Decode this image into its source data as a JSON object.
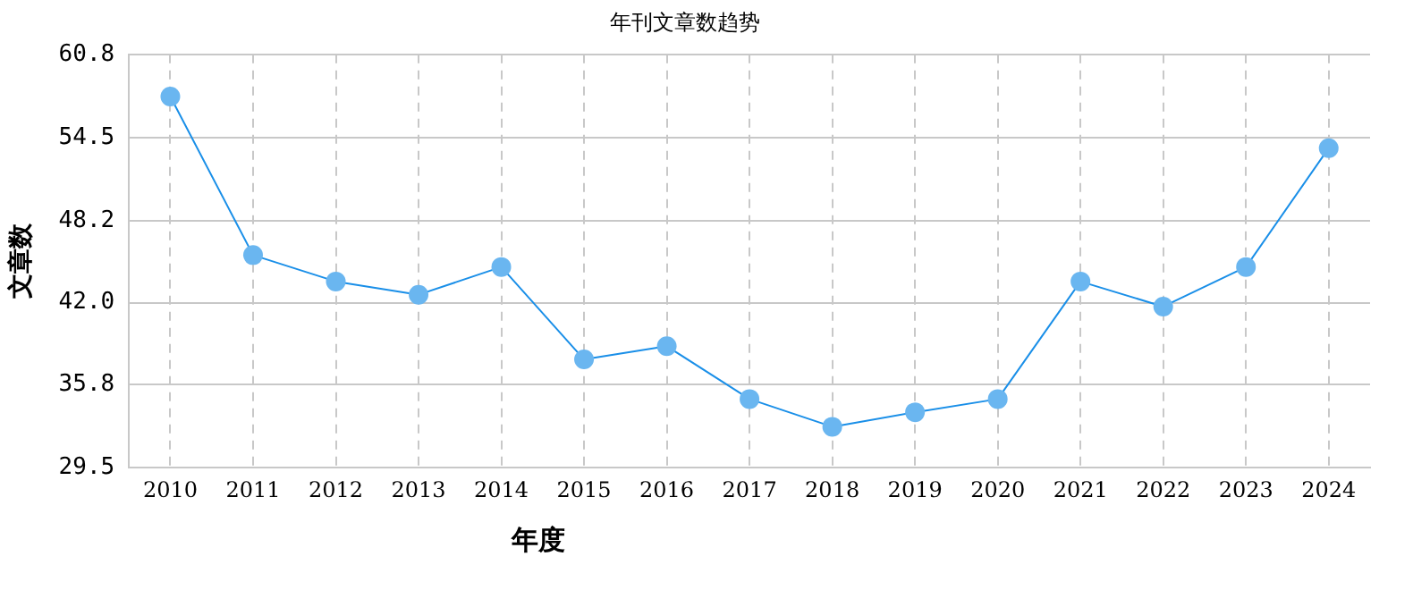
{
  "chart_data": {
    "type": "line",
    "title": "年刊文章数趋势",
    "xlabel": "年度",
    "ylabel": "文章数",
    "categories": [
      "2010",
      "2011",
      "2012",
      "2013",
      "2014",
      "2015",
      "2016",
      "2017",
      "2018",
      "2019",
      "2020",
      "2021",
      "2022",
      "2023",
      "2024"
    ],
    "series": [
      {
        "color": "#1a8fe8",
        "values": [
          57.6,
          45.6,
          43.6,
          42.6,
          44.7,
          37.7,
          38.7,
          34.7,
          32.6,
          33.7,
          34.7,
          43.6,
          41.7,
          44.7,
          53.7
        ]
      }
    ],
    "ylim": [
      29.5,
      60.8
    ],
    "yticks": [
      {
        "value": 29.5,
        "label": "29.5"
      },
      {
        "value": 35.8,
        "label": "35.8"
      },
      {
        "value": 42.0,
        "label": "42.0"
      },
      {
        "value": 48.2,
        "label": "48.2"
      },
      {
        "value": 54.5,
        "label": "54.5"
      },
      {
        "value": 60.8,
        "label": "60.8"
      }
    ],
    "grid": true,
    "legend": false,
    "marker": "circle",
    "line_style": "solid"
  }
}
